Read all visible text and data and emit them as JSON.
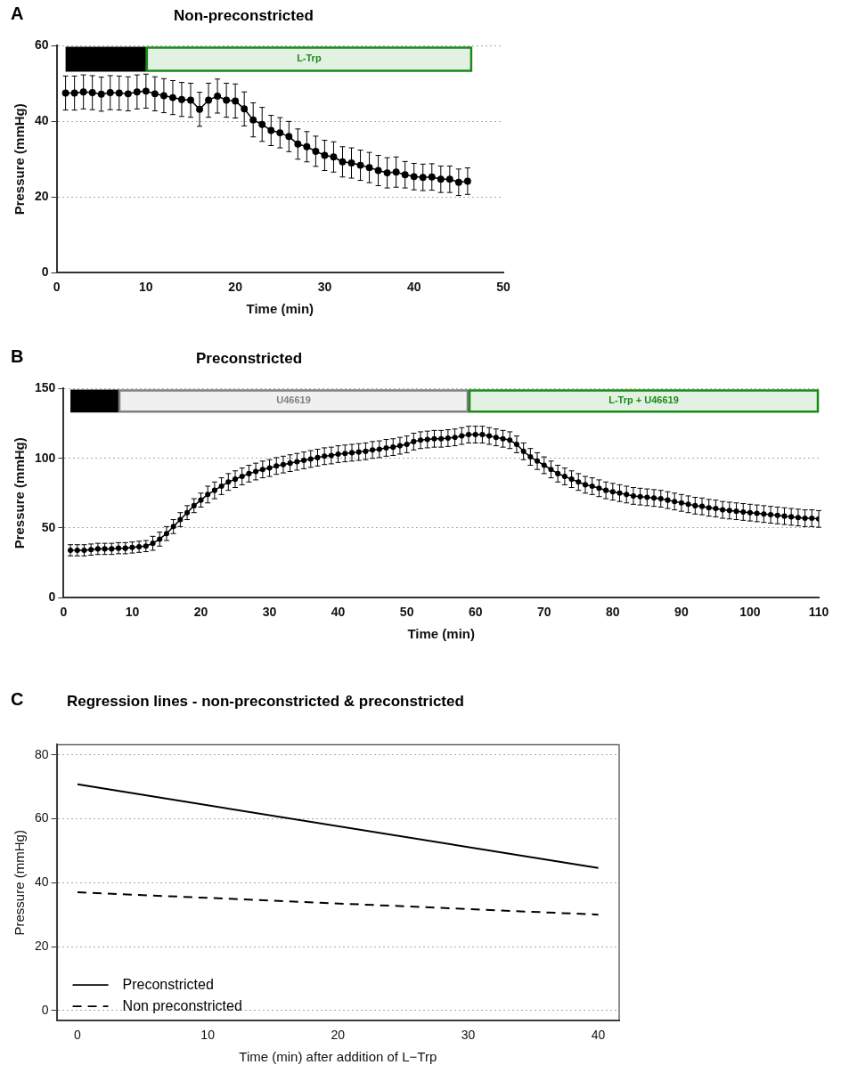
{
  "chart_data": [
    {
      "type": "line",
      "title": "Non-preconstricted",
      "xlabel": "Time (min)",
      "ylabel": "Pressure (mmHg)",
      "annotations": [
        "A"
      ],
      "xlim": [
        0,
        50
      ],
      "ylim": [
        0,
        60
      ],
      "xticks": [
        0,
        10,
        20,
        30,
        40,
        50
      ],
      "yticks": [
        0,
        20,
        40,
        60
      ],
      "grid": "y",
      "marker": "circle",
      "x": [
        1,
        2,
        3,
        4,
        5,
        6,
        7,
        8,
        9,
        10,
        11,
        12,
        13,
        14,
        15,
        16,
        17,
        18,
        19,
        20,
        21,
        22,
        23,
        24,
        25,
        26,
        27,
        28,
        29,
        30,
        31,
        32,
        33,
        34,
        35,
        36,
        37,
        38,
        39,
        40,
        41,
        42,
        43,
        44,
        45,
        46
      ],
      "bands": [
        {
          "axis": "x",
          "from": 1,
          "to": 10,
          "label": null,
          "color": "#000000"
        },
        {
          "axis": "x",
          "from": 10,
          "to": 46.5,
          "label": "L-Trp",
          "color": "#1a8a1a"
        }
      ],
      "series": [
        {
          "color": "#000000",
          "values": [
            47.5,
            47.5,
            47.8,
            47.6,
            47.2,
            47.6,
            47.5,
            47.3,
            47.8,
            48,
            47.3,
            46.8,
            46.3,
            45.8,
            45.6,
            43.2,
            45.6,
            46.7,
            45.6,
            45.4,
            43.3,
            40.4,
            39.2,
            37.6,
            37,
            36,
            34,
            33.3,
            32.1,
            31,
            30.6,
            29.3,
            29,
            28.4,
            27.8,
            27,
            26.4,
            26.6,
            25.9,
            25.4,
            25.2,
            25.3,
            24.7,
            24.7,
            23.9,
            24.2
          ],
          "errors": [
            4.5,
            4.5,
            4.5,
            4.5,
            4.5,
            4.5,
            4.5,
            4.5,
            4.5,
            4.5,
            4.5,
            4.5,
            4.5,
            4.5,
            4.5,
            4.5,
            4.5,
            4.5,
            4.5,
            4.5,
            4.5,
            4.5,
            4.5,
            4,
            4,
            4,
            4,
            4,
            4,
            4,
            4,
            4,
            4,
            4,
            4,
            4,
            4,
            4,
            3.5,
            3.5,
            3.5,
            3.5,
            3.5,
            3.5,
            3.5,
            3.5
          ]
        }
      ]
    },
    {
      "type": "line",
      "title": "Preconstricted",
      "xlabel": "Time (min)",
      "ylabel": "Pressure (mmHg)",
      "annotations": [
        "B"
      ],
      "xlim": [
        0,
        110
      ],
      "ylim": [
        0,
        150
      ],
      "xticks": [
        0,
        10,
        20,
        30,
        40,
        50,
        60,
        70,
        80,
        90,
        100,
        110
      ],
      "yticks": [
        0,
        50,
        100,
        150
      ],
      "grid": "y",
      "marker": "circle",
      "x": [
        1,
        2,
        3,
        4,
        5,
        6,
        7,
        8,
        9,
        10,
        11,
        12,
        13,
        14,
        15,
        16,
        17,
        18,
        19,
        20,
        21,
        22,
        23,
        24,
        25,
        26,
        27,
        28,
        29,
        30,
        31,
        32,
        33,
        34,
        35,
        36,
        37,
        38,
        39,
        40,
        41,
        42,
        43,
        44,
        45,
        46,
        47,
        48,
        49,
        50,
        51,
        52,
        53,
        54,
        55,
        56,
        57,
        58,
        59,
        60,
        61,
        62,
        63,
        64,
        65,
        66,
        67,
        68,
        69,
        70,
        71,
        72,
        73,
        74,
        75,
        76,
        77,
        78,
        79,
        80,
        81,
        82,
        83,
        84,
        85,
        86,
        87,
        88,
        89,
        90,
        91,
        92,
        93,
        94,
        95,
        96,
        97,
        98,
        99,
        100,
        101,
        102,
        103,
        104,
        105,
        106,
        107,
        108,
        109,
        110
      ],
      "bands": [
        {
          "axis": "x",
          "from": 1,
          "to": 8,
          "label": null,
          "color": "#000000"
        },
        {
          "axis": "x",
          "from": 8,
          "to": 59,
          "label": "U46619",
          "color": "#808080"
        },
        {
          "axis": "x",
          "from": 59,
          "to": 110,
          "label": "L-Trp + U46619",
          "color": "#1a8a1a"
        }
      ],
      "series": [
        {
          "color": "#000000",
          "values": [
            34,
            34,
            34,
            34.5,
            35,
            35,
            35,
            35.5,
            35.5,
            36,
            36.5,
            37,
            39,
            42,
            46,
            51,
            56,
            61,
            66,
            70,
            74,
            77,
            80,
            83,
            85,
            87,
            89,
            90.5,
            92,
            93,
            94.5,
            95.5,
            96.5,
            97.5,
            98.5,
            99.5,
            100.5,
            101.5,
            102,
            103,
            103.5,
            104,
            104.5,
            105,
            106,
            106.5,
            107.5,
            108,
            109,
            110,
            112,
            113,
            113.5,
            114,
            114,
            114.5,
            115,
            116,
            117,
            117,
            117,
            116,
            115,
            114,
            113,
            110,
            105,
            101,
            98,
            95,
            92,
            89,
            87,
            85,
            83,
            81,
            80,
            78.5,
            77,
            76,
            75,
            74,
            73,
            72.5,
            72,
            71.5,
            71,
            70,
            69,
            68,
            67,
            66,
            65.5,
            64.5,
            64,
            63,
            62.5,
            62,
            61.5,
            61,
            60.5,
            60,
            59.5,
            59,
            58.5,
            58,
            57.5,
            57,
            57,
            56.5
          ],
          "errors": [
            4,
            4,
            4,
            4,
            4,
            4,
            4,
            4,
            4,
            4,
            4,
            4,
            5,
            5,
            5,
            5,
            5,
            5,
            5,
            5,
            6,
            6,
            6,
            6,
            6,
            6,
            6,
            6,
            6,
            6,
            6,
            6,
            6,
            6,
            6,
            6,
            6,
            6,
            6,
            6,
            6,
            6,
            6,
            6,
            6,
            6,
            6,
            6,
            6,
            6,
            6,
            6,
            6,
            6,
            6,
            6,
            6,
            6,
            6,
            6,
            6,
            6,
            6,
            6,
            6,
            6,
            6,
            6,
            6,
            6,
            6,
            6,
            6,
            6,
            6,
            6,
            6,
            6,
            6,
            6,
            6,
            6,
            6,
            6,
            6,
            6,
            6,
            6,
            6,
            6,
            6,
            6,
            6,
            6,
            6,
            6,
            6,
            6,
            6,
            6,
            6,
            6,
            6,
            6,
            6,
            6,
            6,
            6,
            6,
            6
          ]
        }
      ]
    },
    {
      "type": "line",
      "title": "Regression lines - non-preconstricted & preconstricted",
      "xlabel": "Time (min) after addition of L−Trp",
      "ylabel": "Pressure (mmHg)",
      "annotations": [
        "C"
      ],
      "xlim": [
        -1.6,
        41.6
      ],
      "ylim": [
        -3.2,
        83.2
      ],
      "xticks": [
        0,
        10,
        20,
        30,
        40
      ],
      "yticks": [
        0,
        20,
        40,
        60,
        80
      ],
      "grid": "y",
      "marker": "none",
      "legend": "bottom left",
      "x": [
        0,
        40
      ],
      "series": [
        {
          "name": "Preconstricted",
          "color": "#000000",
          "line_style": "solid",
          "values": [
            70.8,
            44.6
          ]
        },
        {
          "name": "Non preconstricted",
          "color": "#000000",
          "line_style": "dashed",
          "values": [
            37,
            30
          ]
        }
      ]
    }
  ]
}
